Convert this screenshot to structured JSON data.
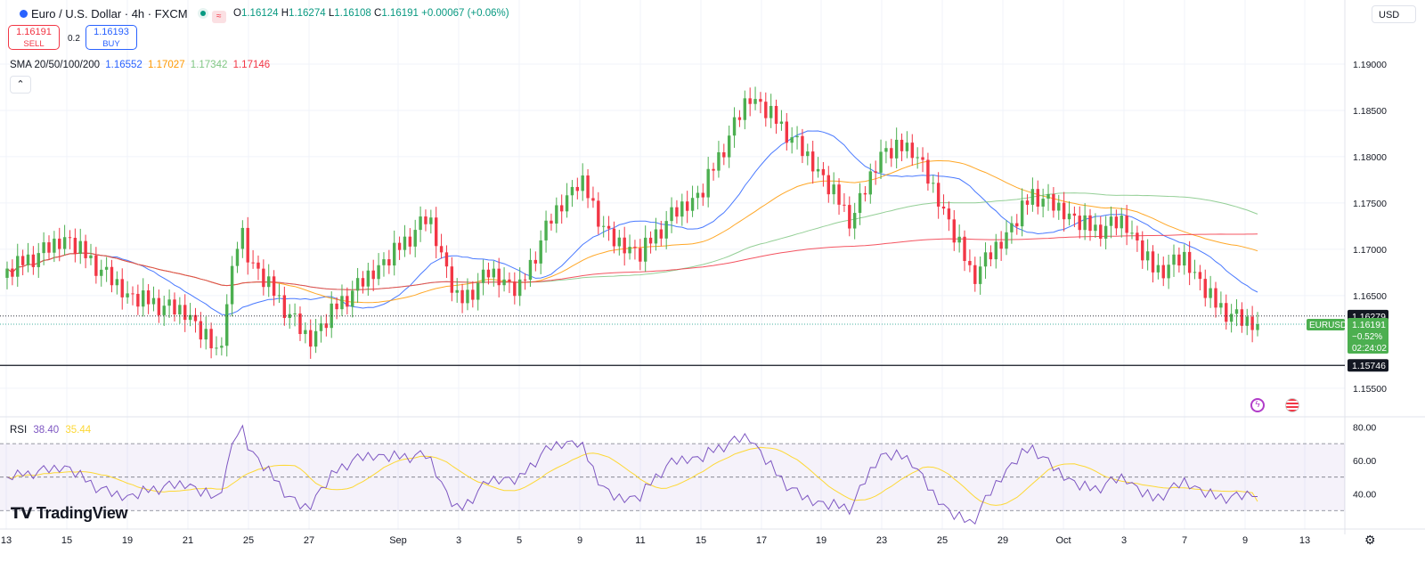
{
  "header": {
    "symbol_title": "Euro / U.S. Dollar · 4h · FXCM",
    "open_label": "O",
    "open": "1.16124",
    "high_label": "H",
    "high": "1.16274",
    "low_label": "L",
    "low": "1.16108",
    "close_label": "C",
    "close": "1.16191",
    "change": "+0.00067 (+0.06%)"
  },
  "trade": {
    "sell_price": "1.16191",
    "sell_label": "SELL",
    "spread": "0.2",
    "buy_price": "1.16193",
    "buy_label": "BUY"
  },
  "sma": {
    "label": "SMA 20/50/100/200",
    "v20": "1.16552",
    "v50": "1.17027",
    "v100": "1.17342",
    "v200": "1.17146"
  },
  "rsi": {
    "label": "RSI",
    "value": "38.40",
    "ma": "35.44"
  },
  "currency": "USD",
  "branding": "TradingView",
  "colors": {
    "up": "#089981",
    "up_fill": "#4caf50",
    "down": "#f23645",
    "sma20": "#2962ff",
    "sma50": "#ff9800",
    "sma100": "#81c784",
    "sma200": "#f23645",
    "rsi": "#7e57c2",
    "rsi_ma": "#fdd835"
  },
  "chart_data": [
    {
      "type": "candlestick",
      "title": "Euro / U.S. Dollar · 4h · FXCM",
      "ylim": [
        1.152,
        1.195
      ],
      "y_ticks": [
        "1.19000",
        "1.18500",
        "1.18000",
        "1.17500",
        "1.17000",
        "1.16500",
        "1.15500"
      ],
      "x_ticks": [
        "13",
        "15",
        "19",
        "21",
        "25",
        "27",
        "Sep",
        "3",
        "5",
        "9",
        "11",
        "15",
        "17",
        "19",
        "23",
        "25",
        "29",
        "Oct",
        "3",
        "7",
        "9",
        "13"
      ],
      "price_labels": {
        "last_symbol": "EURUSD",
        "last_price": "1.16191",
        "last_change": "−0.52%",
        "countdown": "02:24:02",
        "high_line": "1.16279",
        "support_line": "1.15746"
      },
      "price_lines": [
        1.16279,
        1.16191,
        1.15746
      ],
      "series": [
        {
          "name": "SMA 20",
          "color": "#2962ff"
        },
        {
          "name": "SMA 50",
          "color": "#ff9800"
        },
        {
          "name": "SMA 100",
          "color": "#81c784"
        },
        {
          "name": "SMA 200",
          "color": "#f23645"
        }
      ],
      "anchors": [
        [
          "13",
          1.1675
        ],
        [
          "15",
          1.1712
        ],
        [
          "19",
          1.165
        ],
        [
          "21",
          1.163
        ],
        [
          "23",
          1.1585
        ],
        [
          "24",
          1.1725
        ],
        [
          "25",
          1.169
        ],
        [
          "27",
          1.16
        ],
        [
          "28",
          1.164
        ],
        [
          "Sep",
          1.17
        ],
        [
          "2",
          1.1735
        ],
        [
          "3",
          1.164
        ],
        [
          "4",
          1.1675
        ],
        [
          "5",
          1.1655
        ],
        [
          "6",
          1.173
        ],
        [
          "9",
          1.1775
        ],
        [
          "10",
          1.171
        ],
        [
          "11",
          1.1695
        ],
        [
          "12",
          1.1735
        ],
        [
          "15",
          1.176
        ],
        [
          "16",
          1.1865
        ],
        [
          "17",
          1.1855
        ],
        [
          "18",
          1.182
        ],
        [
          "19",
          1.178
        ],
        [
          "22",
          1.173
        ],
        [
          "23",
          1.1805
        ],
        [
          "24",
          1.181
        ],
        [
          "25",
          1.1745
        ],
        [
          "26",
          1.167
        ],
        [
          "29",
          1.171
        ],
        [
          "30",
          1.176
        ],
        [
          "Oct",
          1.174
        ],
        [
          "2",
          1.172
        ],
        [
          "3",
          1.173
        ],
        [
          "6",
          1.1675
        ],
        [
          "7",
          1.169
        ],
        [
          "8",
          1.164
        ],
        [
          "9",
          1.162
        ]
      ]
    },
    {
      "type": "line",
      "title": "RSI",
      "ylim": [
        20,
        85
      ],
      "y_ticks": [
        "80.00",
        "60.00",
        "40.00"
      ],
      "bands": [
        70,
        50,
        30
      ],
      "series": [
        {
          "name": "RSI",
          "color": "#7e57c2",
          "last": 38.4
        },
        {
          "name": "RSI MA",
          "color": "#fdd835",
          "last": 35.44
        }
      ]
    }
  ]
}
